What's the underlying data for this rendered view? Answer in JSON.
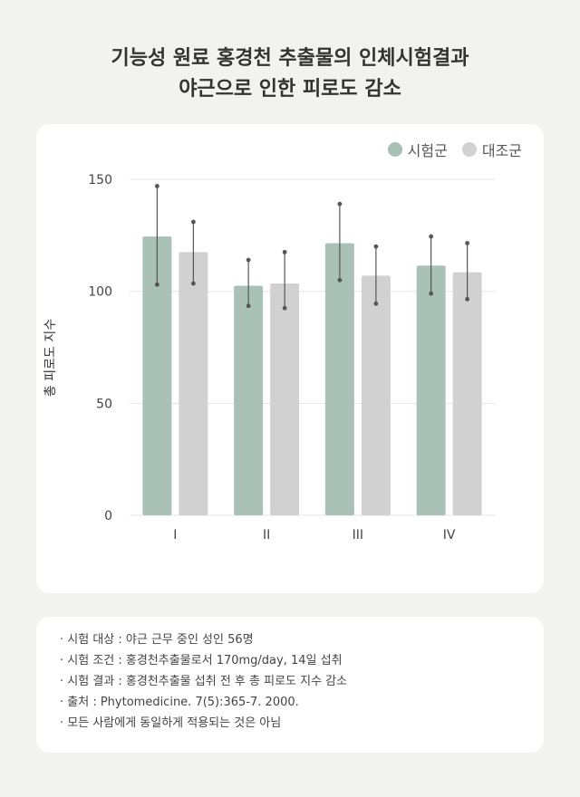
{
  "title": {
    "line1": "기능성 원료 홍경천 추출물의 인체시험결과",
    "line2": "야근으로 인한 피로도 감소"
  },
  "legend": {
    "test": "시험군",
    "control": "대조군"
  },
  "colors": {
    "test": "#a9c1b6",
    "control": "#d1d1d1",
    "error": "#555555",
    "grid": "#e6e6e6"
  },
  "chart_data": {
    "type": "bar",
    "categories": [
      "I",
      "II",
      "III",
      "IV"
    ],
    "ylabel": "총 피로도 지수",
    "ylim": [
      0,
      150
    ],
    "yticks": [
      "0",
      "50",
      "100",
      "150"
    ],
    "legend_position": "top-right",
    "series": [
      {
        "name": "시험군",
        "values": [
          124.5,
          102.5,
          121.5,
          111.5
        ],
        "err_low": [
          103,
          93.5,
          105,
          99
        ],
        "err_high": [
          147,
          114,
          139,
          124.5
        ]
      },
      {
        "name": "대조군",
        "values": [
          117.5,
          103.5,
          107,
          108.5
        ],
        "err_low": [
          103.5,
          92.5,
          94.5,
          96.5
        ],
        "err_high": [
          131,
          117.5,
          120,
          121.5
        ]
      }
    ]
  },
  "notes": [
    "시험 대상 : 야근 근무 중인 성인 56명",
    "시험 조건 : 홍경천추출물로서 170mg/day, 14일 섭취",
    "시험 결과 : 홍경천추출물 섭취 전 후 총 피로도 지수 감소",
    "출처 : Phytomedicine. 7(5):365-7. 2000.",
    "모든 사람에게 동일하게 적용되는 것은 아님"
  ]
}
